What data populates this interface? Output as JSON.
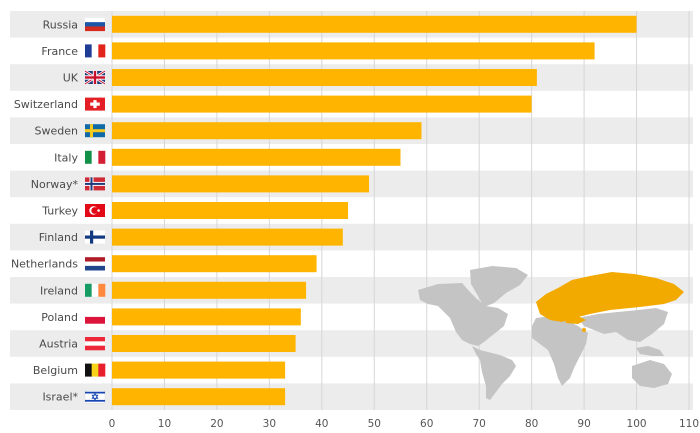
{
  "chart_data": {
    "type": "bar",
    "orientation": "horizontal",
    "categories": [
      "Russia",
      "France",
      "UK",
      "Switzerland",
      "Sweden",
      "Italy",
      "Norway*",
      "Turkey",
      "Finland",
      "Netherlands",
      "Ireland",
      "Poland",
      "Austria",
      "Belgium",
      "Israel*"
    ],
    "values": [
      100,
      92,
      81,
      80,
      59,
      55,
      49,
      45,
      44,
      39,
      37,
      36,
      35,
      33,
      33
    ],
    "xlim": [
      0,
      110
    ],
    "x_ticks": [
      0,
      10,
      20,
      30,
      40,
      50,
      60,
      70,
      80,
      90,
      100,
      110
    ],
    "grid": true,
    "colors": {
      "bar": "#ffb400",
      "band": "#ececec",
      "grid": "#d6d6d6",
      "map_land": "#c4c4c4",
      "map_highlight": "#f2a900"
    },
    "flag_icons": [
      "russia-flag-icon",
      "france-flag-icon",
      "uk-flag-icon",
      "switzerland-flag-icon",
      "sweden-flag-icon",
      "italy-flag-icon",
      "norway-flag-icon",
      "turkey-flag-icon",
      "finland-flag-icon",
      "netherlands-flag-icon",
      "ireland-flag-icon",
      "poland-flag-icon",
      "austria-flag-icon",
      "belgium-flag-icon",
      "israel-flag-icon"
    ],
    "decoration": "world-map-icon"
  }
}
